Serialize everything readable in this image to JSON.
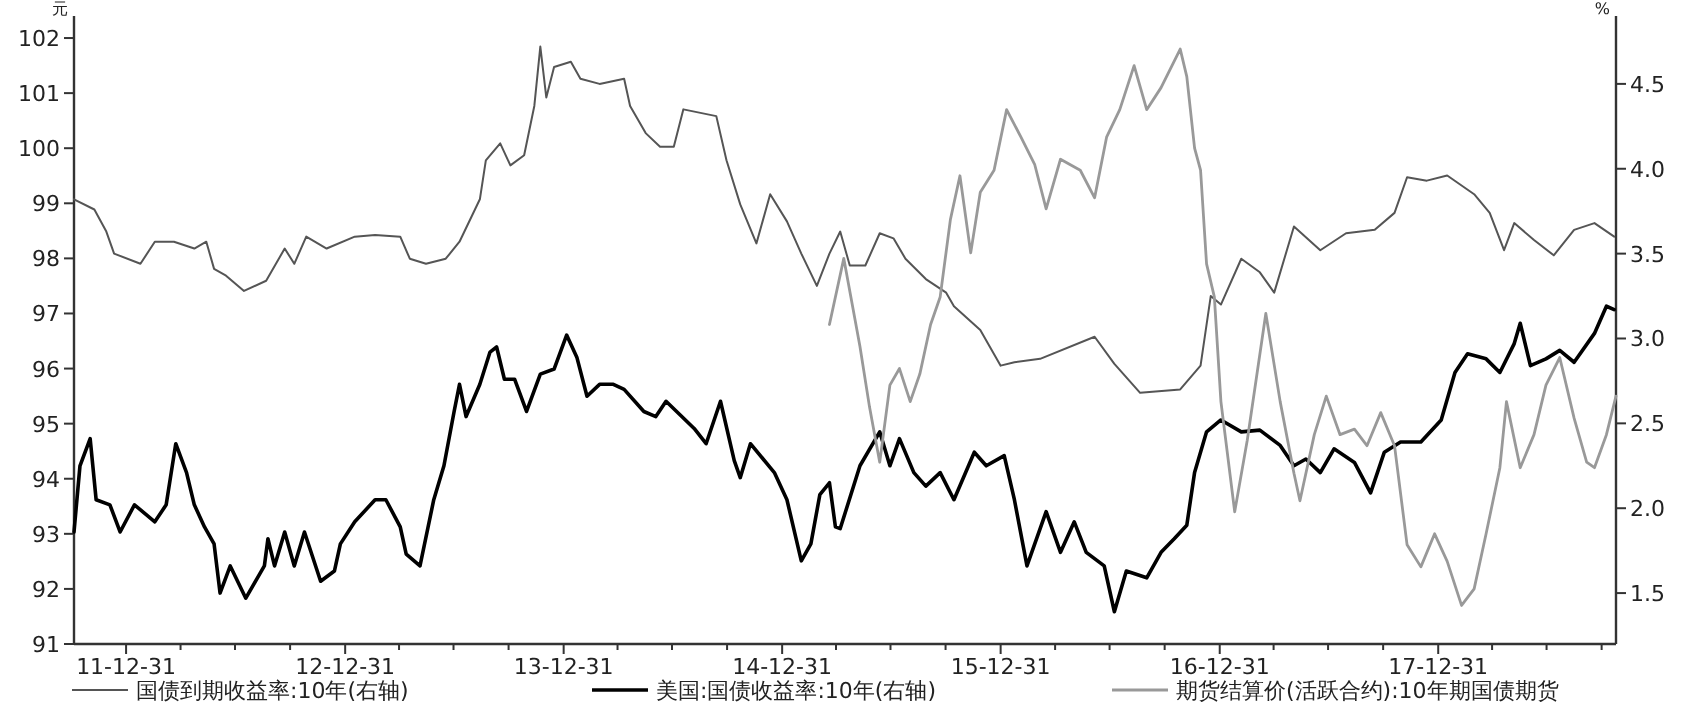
{
  "chart_data": {
    "type": "line",
    "ylabel": "元",
    "y2label": "%",
    "xlim": [
      "2011-10-05",
      "2018-10-24"
    ],
    "xticks": [
      {
        "value": "2011-12-31",
        "label": "11-12-31"
      },
      {
        "value": "2012-03-31",
        "label": null
      },
      {
        "value": "2012-06-30",
        "label": null
      },
      {
        "value": "2012-09-30",
        "label": null
      },
      {
        "value": "2012-12-31",
        "label": "12-12-31"
      },
      {
        "value": "2013-03-31",
        "label": null
      },
      {
        "value": "2013-06-30",
        "label": null
      },
      {
        "value": "2013-09-30",
        "label": null
      },
      {
        "value": "2013-12-31",
        "label": "13-12-31"
      },
      {
        "value": "2014-03-31",
        "label": null
      },
      {
        "value": "2014-06-30",
        "label": null
      },
      {
        "value": "2014-09-30",
        "label": null
      },
      {
        "value": "2014-12-31",
        "label": "14-12-31"
      },
      {
        "value": "2015-03-31",
        "label": null
      },
      {
        "value": "2015-06-30",
        "label": null
      },
      {
        "value": "2015-09-30",
        "label": null
      },
      {
        "value": "2015-12-31",
        "label": "15-12-31"
      },
      {
        "value": "2016-03-31",
        "label": null
      },
      {
        "value": "2016-06-30",
        "label": null
      },
      {
        "value": "2016-09-30",
        "label": null
      },
      {
        "value": "2016-12-31",
        "label": "16-12-31"
      },
      {
        "value": "2017-03-31",
        "label": null
      },
      {
        "value": "2017-06-30",
        "label": null
      },
      {
        "value": "2017-09-30",
        "label": null
      },
      {
        "value": "2017-12-31",
        "label": "17-12-31"
      },
      {
        "value": "2018-03-31",
        "label": null
      },
      {
        "value": "2018-06-30",
        "label": null
      },
      {
        "value": "2018-09-30",
        "label": null
      }
    ],
    "ylim": [
      91,
      102.4
    ],
    "yticks": [
      91,
      92,
      93,
      94,
      95,
      96,
      97,
      98,
      99,
      100,
      101,
      102
    ],
    "y2lim": [
      1.2,
      4.9
    ],
    "y2ticks": [
      {
        "value": 1.5,
        "label": "1.5"
      },
      {
        "value": 2,
        "label": "2.0"
      },
      {
        "value": 2.5,
        "label": "2.5"
      },
      {
        "value": 3,
        "label": "3.0"
      },
      {
        "value": 3.5,
        "label": "3.5"
      },
      {
        "value": 4,
        "label": "4.0"
      },
      {
        "value": 4.5,
        "label": "4.5"
      }
    ],
    "grid": false,
    "legend": "bottom",
    "marker": "none",
    "line_style": "solid",
    "series": [
      {
        "name": "国债到期收益率:10年(右轴)",
        "color": "#555555",
        "axis": "y2",
        "x": [
          "2011-10-05",
          "2011-11-08",
          "2011-11-28",
          "2011-12-11",
          "2012-01-24",
          "2012-02-17",
          "2012-03-20",
          "2012-04-23",
          "2012-05-13",
          "2012-05-26",
          "2012-06-15",
          "2012-07-15",
          "2012-08-21",
          "2012-09-21",
          "2012-10-07",
          "2012-10-27",
          "2012-11-30",
          "2013-01-16",
          "2013-02-19",
          "2013-04-02",
          "2013-04-18",
          "2013-05-15",
          "2013-06-17",
          "2013-07-10",
          "2013-08-13",
          "2013-08-23",
          "2013-09-16",
          "2013-10-03",
          "2013-10-26",
          "2013-11-12",
          "2013-11-22",
          "2013-12-02",
          "2013-12-15",
          "2014-01-12",
          "2014-01-28",
          "2014-03-01",
          "2014-04-11",
          "2014-04-21",
          "2014-05-17",
          "2014-06-10",
          "2014-07-03",
          "2014-07-19",
          "2014-09-12",
          "2014-09-29",
          "2014-10-22",
          "2014-11-18",
          "2014-12-11",
          "2015-01-08",
          "2015-02-01",
          "2015-02-27",
          "2015-03-20",
          "2015-04-07",
          "2015-04-23",
          "2015-05-19",
          "2015-06-12",
          "2015-07-05",
          "2015-07-25",
          "2015-08-28",
          "2015-10-01",
          "2015-10-14",
          "2015-11-27",
          "2015-12-31",
          "2016-01-23",
          "2016-03-06",
          "2016-06-05",
          "2016-07-08",
          "2016-08-20",
          "2016-10-26",
          "2016-11-29",
          "2016-12-16",
          "2017-01-02",
          "2017-02-05",
          "2017-03-08",
          "2017-04-01",
          "2017-05-04",
          "2017-06-17",
          "2017-07-30",
          "2017-09-16",
          "2017-10-19",
          "2017-11-09",
          "2017-12-12",
          "2018-01-15",
          "2018-03-01",
          "2018-03-27",
          "2018-04-20",
          "2018-05-07",
          "2018-06-09",
          "2018-07-12",
          "2018-08-15",
          "2018-09-18",
          "2018-10-21"
        ],
        "values": [
          3.82,
          3.76,
          3.63,
          3.5,
          3.44,
          3.57,
          3.57,
          3.53,
          3.57,
          3.41,
          3.37,
          3.28,
          3.34,
          3.53,
          3.44,
          3.6,
          3.53,
          3.6,
          3.61,
          3.6,
          3.47,
          3.44,
          3.47,
          3.57,
          3.82,
          4.05,
          4.15,
          4.02,
          4.08,
          4.37,
          4.72,
          4.42,
          4.6,
          4.63,
          4.53,
          4.5,
          4.53,
          4.37,
          4.21,
          4.13,
          4.13,
          4.35,
          4.31,
          4.05,
          3.79,
          3.56,
          3.85,
          3.69,
          3.5,
          3.31,
          3.5,
          3.63,
          3.43,
          3.43,
          3.62,
          3.59,
          3.47,
          3.35,
          3.27,
          3.19,
          3.05,
          2.84,
          2.86,
          2.88,
          3.01,
          2.85,
          2.68,
          2.7,
          2.84,
          3.25,
          3.2,
          3.47,
          3.39,
          3.27,
          3.66,
          3.52,
          3.62,
          3.64,
          3.74,
          3.95,
          3.93,
          3.96,
          3.85,
          3.74,
          3.52,
          3.68,
          3.58,
          3.49,
          3.64,
          3.68,
          3.6
        ]
      },
      {
        "name": "美国:国债收益率:10年(右轴)",
        "color": "#000000",
        "axis": "y2",
        "x": [
          "2011-10-05",
          "2011-10-15",
          "2011-11-01",
          "2011-11-11",
          "2011-12-04",
          "2011-12-21",
          "2012-01-14",
          "2012-02-17",
          "2012-03-07",
          "2012-03-23",
          "2012-04-10",
          "2012-04-23",
          "2012-05-10",
          "2012-05-26",
          "2012-06-05",
          "2012-06-22",
          "2012-07-18",
          "2012-08-18",
          "2012-08-24",
          "2012-09-04",
          "2012-09-21",
          "2012-10-07",
          "2012-10-24",
          "2012-11-20",
          "2012-12-13",
          "2012-12-23",
          "2013-01-16",
          "2013-02-19",
          "2013-03-09",
          "2013-04-02",
          "2013-04-12",
          "2013-05-05",
          "2013-05-28",
          "2013-06-14",
          "2013-07-01",
          "2013-07-10",
          "2013-07-21",
          "2013-08-13",
          "2013-08-30",
          "2013-09-10",
          "2013-09-23",
          "2013-10-10",
          "2013-10-30",
          "2013-11-22",
          "2013-12-15",
          "2014-01-05",
          "2014-01-22",
          "2014-02-08",
          "2014-03-01",
          "2014-03-24",
          "2014-04-11",
          "2014-05-14",
          "2014-06-03",
          "2014-06-20",
          "2014-08-06",
          "2014-08-26",
          "2014-09-19",
          "2014-10-12",
          "2014-10-22",
          "2014-11-08",
          "2014-12-18",
          "2015-01-08",
          "2015-02-01",
          "2015-02-17",
          "2015-03-04",
          "2015-03-20",
          "2015-03-30",
          "2015-04-07",
          "2015-05-10",
          "2015-06-12",
          "2015-06-29",
          "2015-07-15",
          "2015-08-08",
          "2015-08-28",
          "2015-09-21",
          "2015-10-14",
          "2015-11-17",
          "2015-12-07",
          "2016-01-06",
          "2016-01-23",
          "2016-02-13",
          "2016-03-16",
          "2016-04-09",
          "2016-05-02",
          "2016-05-22",
          "2016-06-21",
          "2016-07-08",
          "2016-07-28",
          "2016-08-31",
          "2016-09-24",
          "2016-10-16",
          "2016-11-06",
          "2016-11-19",
          "2016-12-09",
          "2017-01-02",
          "2017-02-05",
          "2017-03-08",
          "2017-04-11",
          "2017-05-04",
          "2017-05-24",
          "2017-06-17",
          "2017-07-10",
          "2017-08-13",
          "2017-09-09",
          "2017-10-02",
          "2017-10-29",
          "2017-12-02",
          "2018-01-05",
          "2018-01-28",
          "2018-02-18",
          "2018-03-21",
          "2018-04-13",
          "2018-05-07",
          "2018-05-17",
          "2018-06-03",
          "2018-06-29",
          "2018-07-22",
          "2018-08-15",
          "2018-09-18",
          "2018-10-08",
          "2018-10-21"
        ],
        "values": [
          1.86,
          2.25,
          2.41,
          2.05,
          2.02,
          1.86,
          2.02,
          1.92,
          2.02,
          2.38,
          2.21,
          2.02,
          1.89,
          1.79,
          1.5,
          1.66,
          1.47,
          1.66,
          1.82,
          1.66,
          1.86,
          1.66,
          1.86,
          1.57,
          1.63,
          1.79,
          1.92,
          2.05,
          2.05,
          1.89,
          1.73,
          1.66,
          2.05,
          2.25,
          2.57,
          2.73,
          2.54,
          2.73,
          2.92,
          2.95,
          2.76,
          2.76,
          2.57,
          2.79,
          2.82,
          3.02,
          2.89,
          2.66,
          2.73,
          2.73,
          2.7,
          2.57,
          2.54,
          2.63,
          2.47,
          2.38,
          2.63,
          2.28,
          2.18,
          2.38,
          2.21,
          2.05,
          1.69,
          1.79,
          2.08,
          2.15,
          1.89,
          1.88,
          2.25,
          2.45,
          2.25,
          2.41,
          2.21,
          2.13,
          2.21,
          2.05,
          2.33,
          2.25,
          2.31,
          2.05,
          1.66,
          1.98,
          1.74,
          1.92,
          1.74,
          1.66,
          1.39,
          1.63,
          1.59,
          1.74,
          1.82,
          1.9,
          2.21,
          2.45,
          2.52,
          2.45,
          2.46,
          2.37,
          2.25,
          2.29,
          2.21,
          2.35,
          2.27,
          2.09,
          2.33,
          2.39,
          2.39,
          2.52,
          2.8,
          2.91,
          2.88,
          2.8,
          2.97,
          3.09,
          2.84,
          2.88,
          2.93,
          2.86,
          3.03,
          3.19,
          3.17
        ]
      },
      {
        "name": "期货结算价(活跃合约):10年期国债期货",
        "color": "#999999",
        "axis": "y",
        "x": [
          "2015-03-20",
          "2015-04-13",
          "2015-05-10",
          "2015-05-26",
          "2015-06-12",
          "2015-06-29",
          "2015-07-15",
          "2015-08-02",
          "2015-08-18",
          "2015-09-05",
          "2015-09-21",
          "2015-10-08",
          "2015-10-24",
          "2015-11-11",
          "2015-11-27",
          "2015-12-20",
          "2016-01-10",
          "2016-02-03",
          "2016-02-26",
          "2016-03-16",
          "2016-04-09",
          "2016-05-12",
          "2016-06-05",
          "2016-06-25",
          "2016-07-17",
          "2016-08-10",
          "2016-08-31",
          "2016-09-24",
          "2016-10-26",
          "2016-11-06",
          "2016-11-19",
          "2016-11-29",
          "2016-12-09",
          "2016-12-22",
          "2017-01-02",
          "2017-01-25",
          "2017-02-15",
          "2017-03-18",
          "2017-04-11",
          "2017-05-04",
          "2017-05-14",
          "2017-06-07",
          "2017-06-27",
          "2017-07-20",
          "2017-08-13",
          "2017-09-03",
          "2017-09-26",
          "2017-10-19",
          "2017-11-09",
          "2017-12-02",
          "2017-12-25",
          "2018-01-15",
          "2018-02-08",
          "2018-03-01",
          "2018-03-21",
          "2018-04-13",
          "2018-04-24",
          "2018-05-17",
          "2018-06-09",
          "2018-06-29",
          "2018-07-22",
          "2018-08-15",
          "2018-09-05",
          "2018-09-18",
          "2018-10-08",
          "2018-10-24"
        ],
        "values": [
          96.8,
          98.0,
          96.4,
          95.3,
          94.3,
          95.7,
          96.0,
          95.4,
          95.9,
          96.8,
          97.3,
          98.7,
          99.5,
          98.1,
          99.2,
          99.6,
          100.7,
          100.2,
          99.7,
          98.9,
          99.8,
          99.6,
          99.1,
          100.2,
          100.7,
          101.5,
          100.7,
          101.1,
          101.8,
          101.3,
          100.0,
          99.6,
          97.9,
          97.3,
          95.4,
          93.4,
          94.7,
          97.0,
          95.4,
          94.1,
          93.6,
          94.8,
          95.5,
          94.8,
          94.9,
          94.6,
          95.2,
          94.6,
          92.8,
          92.4,
          93.0,
          92.5,
          91.7,
          92.0,
          93.0,
          94.2,
          95.4,
          94.2,
          94.8,
          95.7,
          96.2,
          95.1,
          94.3,
          94.2,
          94.8,
          95.5
        ]
      }
    ]
  }
}
